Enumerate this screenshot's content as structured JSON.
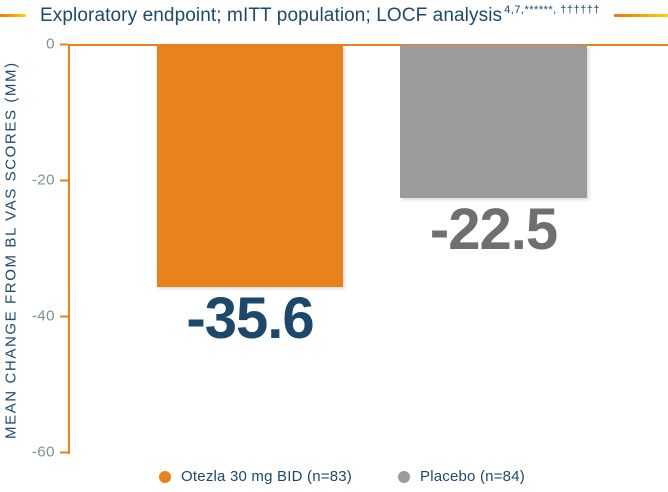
{
  "chart_data": {
    "type": "bar",
    "title": "Exploratory endpoint; mITT population; LOCF analysis",
    "title_references": "4,7,******, ††††††",
    "ylabel": "MEAN CHANGE FROM BL VAS SCORES (MM)",
    "ylim": [
      -60,
      0
    ],
    "yticks": [
      0,
      -20,
      -40,
      -60
    ],
    "ytick_labels": [
      "0",
      "-20",
      "-40",
      "-60"
    ],
    "categories": [
      "Otezla 30 mg BID (n=83)",
      "Placebo (n=84)"
    ],
    "values": [
      -35.6,
      -22.5
    ],
    "value_labels": [
      "-35.6",
      "-22.5"
    ],
    "bar_colors": [
      "#E8821D",
      "#9B9B9B"
    ],
    "value_label_colors": [
      "#1B486B",
      "#6F6F6F"
    ],
    "grid": false,
    "legend_position": "bottom",
    "legend": [
      {
        "label": "Otezla 30 mg BID (n=83)",
        "color": "#E8821D"
      },
      {
        "label": "Placebo (n=84)",
        "color": "#9B9B9B"
      }
    ]
  },
  "colors": {
    "navy": "#1B4A6E",
    "axis_orange": "#E8821D",
    "tick_label": "#7E8E9A",
    "rule_gradient_start": "#E87514",
    "rule_gradient_end": "#FFD200"
  }
}
